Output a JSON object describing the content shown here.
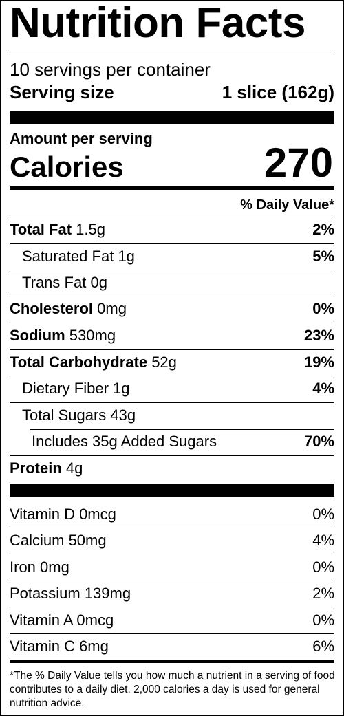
{
  "title": "Nutrition Facts",
  "servings_per_container": "10 servings per container",
  "serving_size": {
    "label": "Serving size",
    "value": "1 slice (162g)"
  },
  "amount_per_serving": "Amount per serving",
  "calories": {
    "label": "Calories",
    "value": "270"
  },
  "daily_value_header": "% Daily Value*",
  "nutrients": [
    {
      "name": "Total Fat",
      "amount": "1.5g",
      "dv": "2%"
    },
    {
      "name": "Saturated Fat",
      "amount": "1g",
      "dv": "5%"
    },
    {
      "name": "Trans Fat",
      "amount": "0g",
      "dv": ""
    },
    {
      "name": "Cholesterol",
      "amount": "0mg",
      "dv": "0%"
    },
    {
      "name": "Sodium",
      "amount": "530mg",
      "dv": "23%"
    },
    {
      "name": "Total Carbohydrate",
      "amount": "52g",
      "dv": "19%"
    },
    {
      "name": "Dietary Fiber",
      "amount": "1g",
      "dv": "4%"
    },
    {
      "name": "Total Sugars",
      "amount": "43g",
      "dv": ""
    },
    {
      "name": "Includes 35g Added Sugars",
      "amount": "",
      "dv": "70%"
    },
    {
      "name": "Protein",
      "amount": "4g",
      "dv": ""
    }
  ],
  "vitamins": [
    {
      "name": "Vitamin D 0mcg",
      "dv": "0%"
    },
    {
      "name": "Calcium 50mg",
      "dv": "4%"
    },
    {
      "name": "Iron 0mg",
      "dv": "0%"
    },
    {
      "name": "Potassium 139mg",
      "dv": "2%"
    },
    {
      "name": "Vitamin A 0mcg",
      "dv": "0%"
    },
    {
      "name": "Vitamin C 6mg",
      "dv": "6%"
    }
  ],
  "footnote": "*The % Daily Value tells you how much a nutrient in a serving of food contributes to a daily diet. 2,000 calories a day is used for general nutrition advice."
}
